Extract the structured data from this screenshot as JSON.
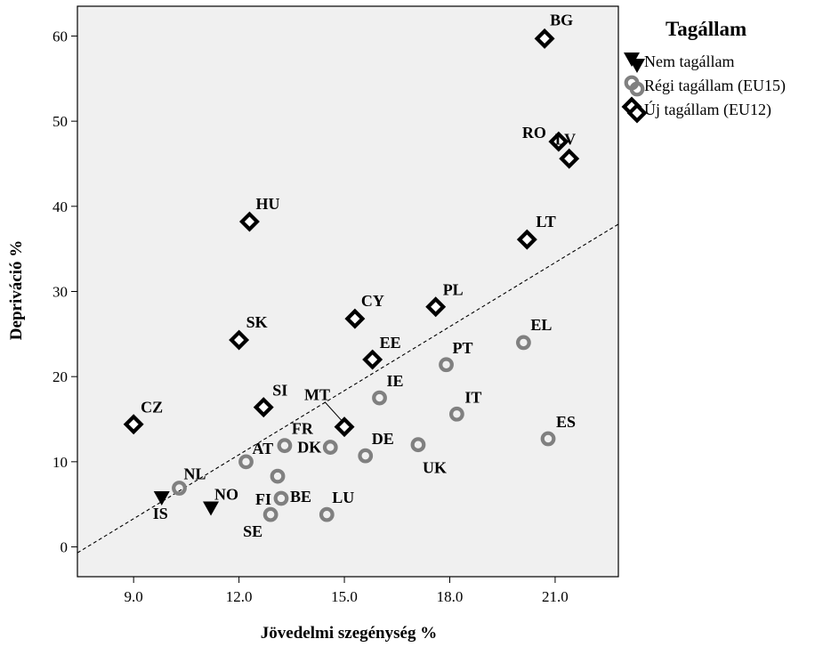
{
  "chart_data": {
    "type": "scatter",
    "xlabel": "Jövedelmi szegénység %",
    "ylabel": "Depriváció %",
    "xlim": [
      7.4,
      22.8
    ],
    "ylim": [
      -3.5,
      63.5
    ],
    "xticks": [
      "9.0",
      "12.0",
      "15.0",
      "18.0",
      "21.0"
    ],
    "xtick_values": [
      9,
      12,
      15,
      18,
      21
    ],
    "yticks": [
      "0",
      "10",
      "20",
      "30",
      "40",
      "50",
      "60"
    ],
    "ytick_values": [
      0,
      10,
      20,
      30,
      40,
      50,
      60
    ],
    "grid": false,
    "legend_position": "right",
    "legend": {
      "title": "Tagállam",
      "entries": [
        {
          "key": "non",
          "label": "Nem tagállam"
        },
        {
          "key": "old",
          "label": "Régi tagállam (EU15)"
        },
        {
          "key": "new",
          "label": "Új tagállam (EU12)"
        }
      ]
    },
    "trendline": {
      "x": [
        7.4,
        22.8
      ],
      "y": [
        -0.7,
        37.9
      ]
    },
    "series": [
      {
        "key": "non",
        "name": "Nem tagállam",
        "points": [
          {
            "label": "IS",
            "x": 9.8,
            "y": 5.8
          },
          {
            "label": "NO",
            "x": 11.2,
            "y": 4.6
          }
        ]
      },
      {
        "key": "old",
        "name": "Régi tagállam (EU15)",
        "points": [
          {
            "label": "NL",
            "x": 10.3,
            "y": 6.9
          },
          {
            "label": "AT",
            "x": 12.2,
            "y": 10.0
          },
          {
            "label": "FR",
            "x": 13.3,
            "y": 11.9
          },
          {
            "label": "BE",
            "x": 13.1,
            "y": 8.3
          },
          {
            "label": "FI",
            "x": 13.2,
            "y": 5.7
          },
          {
            "label": "SE",
            "x": 12.9,
            "y": 3.8
          },
          {
            "label": "DK",
            "x": 14.6,
            "y": 11.7
          },
          {
            "label": "LU",
            "x": 14.5,
            "y": 3.8
          },
          {
            "label": "DE",
            "x": 15.6,
            "y": 10.7
          },
          {
            "label": "IE",
            "x": 16.0,
            "y": 17.5
          },
          {
            "label": "UK",
            "x": 17.1,
            "y": 12.0
          },
          {
            "label": "PT",
            "x": 17.9,
            "y": 21.4
          },
          {
            "label": "IT",
            "x": 18.2,
            "y": 15.6
          },
          {
            "label": "EL",
            "x": 20.1,
            "y": 24.0
          },
          {
            "label": "ES",
            "x": 20.8,
            "y": 12.7
          }
        ]
      },
      {
        "key": "new",
        "name": "Új tagállam (EU12)",
        "points": [
          {
            "label": "CZ",
            "x": 9.0,
            "y": 14.4
          },
          {
            "label": "SI",
            "x": 12.7,
            "y": 16.4
          },
          {
            "label": "SK",
            "x": 12.0,
            "y": 24.3
          },
          {
            "label": "HU",
            "x": 12.3,
            "y": 38.2
          },
          {
            "label": "MT",
            "x": 15.0,
            "y": 14.1
          },
          {
            "label": "CY",
            "x": 15.3,
            "y": 26.8
          },
          {
            "label": "EE",
            "x": 15.8,
            "y": 22.0
          },
          {
            "label": "PL",
            "x": 17.6,
            "y": 28.2
          },
          {
            "label": "LT",
            "x": 20.2,
            "y": 36.1
          },
          {
            "label": "RO",
            "x": 21.1,
            "y": 47.6
          },
          {
            "label": "LV",
            "x": 21.4,
            "y": 45.6
          },
          {
            "label": "BG",
            "x": 20.7,
            "y": 59.7
          }
        ]
      }
    ]
  }
}
